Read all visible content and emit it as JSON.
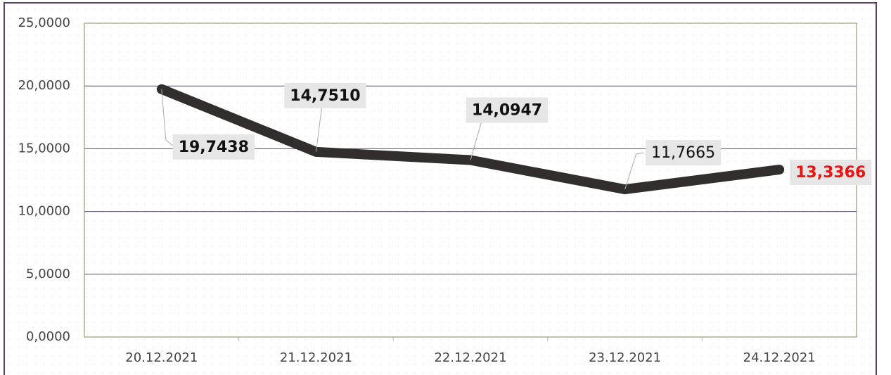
{
  "chart_data": {
    "type": "line",
    "categories": [
      "20.12.2021",
      "21.12.2021",
      "22.12.2021",
      "23.12.2021",
      "24.12.2021"
    ],
    "series": [
      {
        "color": "#332e2e",
        "values": [
          19.7438,
          14.751,
          14.0947,
          11.7665,
          13.3366
        ],
        "value_labels": [
          "19,7438",
          "14,7510",
          "14,0947",
          "11,7665",
          "13,3366"
        ]
      }
    ],
    "ylim": [
      0,
      25
    ],
    "yticks": [
      {
        "value": 0,
        "label": "0,0000"
      },
      {
        "value": 5,
        "label": "5,0000"
      },
      {
        "value": 10,
        "label": "10,0000"
      },
      {
        "value": 15,
        "label": "15,0000"
      },
      {
        "value": 20,
        "label": "20,0000"
      },
      {
        "value": 25,
        "label": "25,0000"
      }
    ],
    "grid": true
  }
}
